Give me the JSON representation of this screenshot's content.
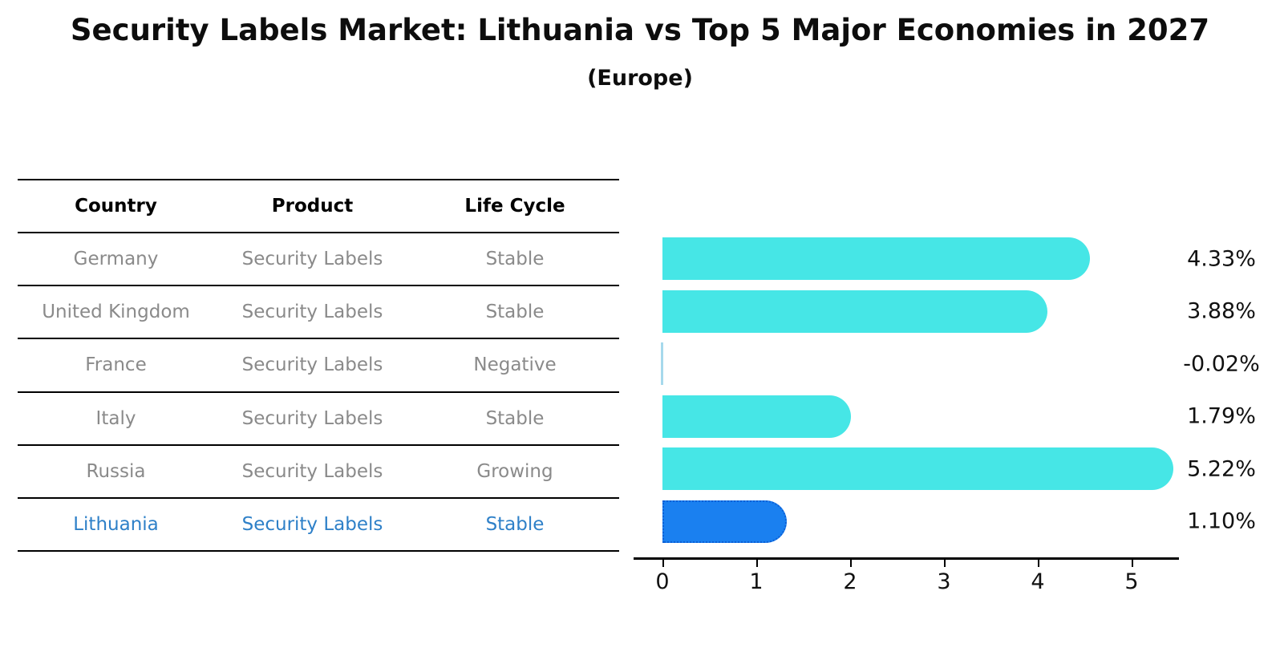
{
  "title": "Security Labels Market: Lithuania vs Top 5 Major Economies in 2027",
  "subtitle": "(Europe)",
  "table": {
    "headers": [
      "Country",
      "Product",
      "Life Cycle"
    ],
    "rows": [
      {
        "country": "Germany",
        "product": "Security Labels",
        "life_cycle": "Stable"
      },
      {
        "country": "United Kingdom",
        "product": "Security Labels",
        "life_cycle": "Stable"
      },
      {
        "country": "France",
        "product": "Security Labels",
        "life_cycle": "Negative"
      },
      {
        "country": "Italy",
        "product": "Security Labels",
        "life_cycle": "Stable"
      },
      {
        "country": "Russia",
        "product": "Security Labels",
        "life_cycle": "Growing"
      },
      {
        "country": "Lithuania",
        "product": "Security Labels",
        "life_cycle": "Stable"
      }
    ],
    "highlight_row": "Lithuania"
  },
  "chart_data": {
    "type": "bar",
    "orientation": "horizontal",
    "title": "Security Labels Market: Lithuania vs Top 5 Major Economies in 2027",
    "subtitle": "(Europe)",
    "categories": [
      "Germany",
      "United Kingdom",
      "France",
      "Italy",
      "Russia",
      "Lithuania"
    ],
    "values": [
      4.33,
      3.88,
      -0.02,
      1.79,
      5.22,
      1.1
    ],
    "labels": [
      "4.33%",
      "3.88%",
      "-0.02%",
      "1.79%",
      "5.22%",
      "1.10%"
    ],
    "xticks": [
      "0",
      "1",
      "2",
      "3",
      "4",
      "5"
    ],
    "xlim": [
      -0.1,
      5.6
    ],
    "grid": false,
    "legend": false,
    "highlight_index": 5,
    "bar_color": "#46e6e6",
    "highlight_color": "#1a80f0",
    "highlight_border_color": "#0c5fd6",
    "negative_bar_color": "#a6d9ec"
  },
  "colors": {
    "title": "#0d0d0d",
    "text_muted": "#8a8a8a",
    "text_highlight": "#2e80c8",
    "axis": "#000000"
  }
}
